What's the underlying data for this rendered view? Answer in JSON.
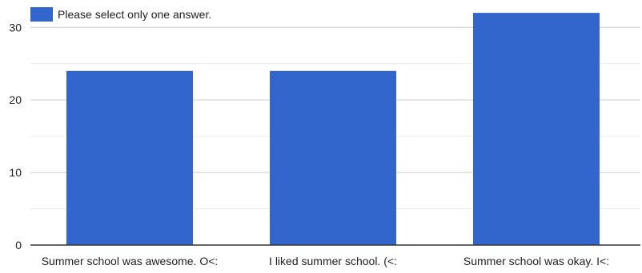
{
  "chart_data": {
    "type": "bar",
    "title": "",
    "xlabel": "",
    "ylabel": "",
    "categories": [
      "Summer school was awesome. O<:",
      "I liked summer school. (<:",
      "Summer school was okay. I<:"
    ],
    "series": [
      {
        "name": "Please select only one answer.",
        "values": [
          24,
          24,
          32
        ],
        "color": "#3366cc"
      }
    ],
    "ylim": [
      0,
      33
    ],
    "yticks": [
      0,
      10,
      20,
      30
    ],
    "minor_gridlines": true,
    "legend_position": "top-left",
    "colors": {
      "bar": "#3366cc",
      "major_grid": "#cccccc",
      "minor_grid": "#ebebeb",
      "baseline": "#333333"
    }
  }
}
